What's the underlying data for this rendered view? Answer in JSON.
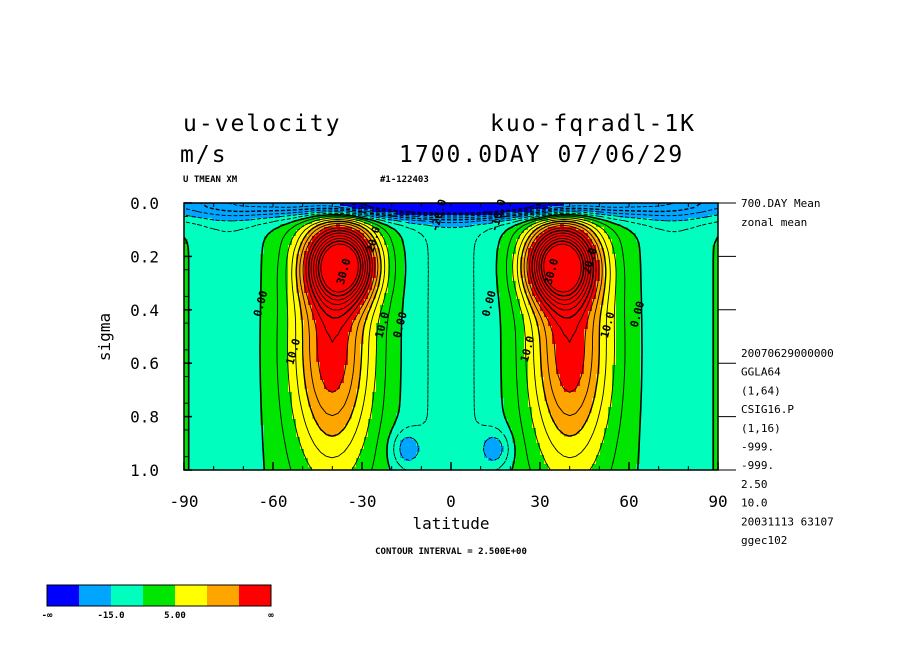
{
  "header": {
    "title_left": "u-velocity",
    "title_right": "kuo-fqradl-1K",
    "units": "m/s",
    "datetime": "1700.0DAY 07/06/29",
    "var_label": "U TMEAN XM",
    "run_id": "#1-122403"
  },
  "side_info": {
    "mean_label": "700.DAY Mean",
    "zonal_label": "zonal mean",
    "lines": [
      "20070629000000",
      "GGLA64",
      "(1,64)",
      "CSIG16.P",
      "(1,16)",
      "-999.",
      "-999.",
      "2.50",
      "10.0",
      "20031113  63107",
      "ggec102"
    ]
  },
  "footer": {
    "contour_interval": "CONTOUR INTERVAL = 2.500E+00"
  },
  "colorbar": {
    "colors": [
      "#0000ff",
      "#00a5ff",
      "#00ffbf",
      "#00e600",
      "#ffff00",
      "#ffa500",
      "#ff0000"
    ],
    "labels": [
      "-∞",
      "-15.0",
      "5.00",
      "∞"
    ]
  },
  "chart_data": {
    "type": "heatmap",
    "title": "u-velocity",
    "xlabel": "latitude",
    "ylabel": "sigma",
    "xlim": [
      -90,
      90
    ],
    "ylim": [
      0.0,
      1.0
    ],
    "y_inverted": true,
    "x_ticks": [
      -90,
      -60,
      -30,
      0,
      30,
      60,
      90
    ],
    "x_tick_labels": [
      "-90",
      "-60",
      "-30",
      "0",
      "30",
      "60",
      "90"
    ],
    "y_ticks": [
      0.0,
      0.2,
      0.4,
      0.6,
      0.8,
      1.0
    ],
    "y_tick_labels": [
      "0.0",
      "0.2",
      "0.4",
      "0.6",
      "0.8",
      "1.0"
    ],
    "color_levels": [
      -15.0,
      -5.0,
      0.0,
      5.0,
      10.0,
      15.0
    ],
    "contour_labels": [
      {
        "text": "-20.0",
        "lat": -3,
        "sigma": 0.05
      },
      {
        "text": "-10.0",
        "lat": 17,
        "sigma": 0.05
      },
      {
        "text": "30.0",
        "lat": -35,
        "sigma": 0.26
      },
      {
        "text": "30.0",
        "lat": 35,
        "sigma": 0.26
      },
      {
        "text": "20.0",
        "lat": -25,
        "sigma": 0.14
      },
      {
        "text": "20.0",
        "lat": 48,
        "sigma": 0.22
      },
      {
        "text": "0.00",
        "lat": -63,
        "sigma": 0.38
      },
      {
        "text": "0.00",
        "lat": -16,
        "sigma": 0.46
      },
      {
        "text": "0.00",
        "lat": 14,
        "sigma": 0.38
      },
      {
        "text": "0.00",
        "lat": 64,
        "sigma": 0.42
      },
      {
        "text": "10.0",
        "lat": -52,
        "sigma": 0.56
      },
      {
        "text": "10.0",
        "lat": -22,
        "sigma": 0.46
      },
      {
        "text": "10.0",
        "lat": 27,
        "sigma": 0.55
      },
      {
        "text": "10.0",
        "lat": 54,
        "sigma": 0.46
      }
    ]
  }
}
